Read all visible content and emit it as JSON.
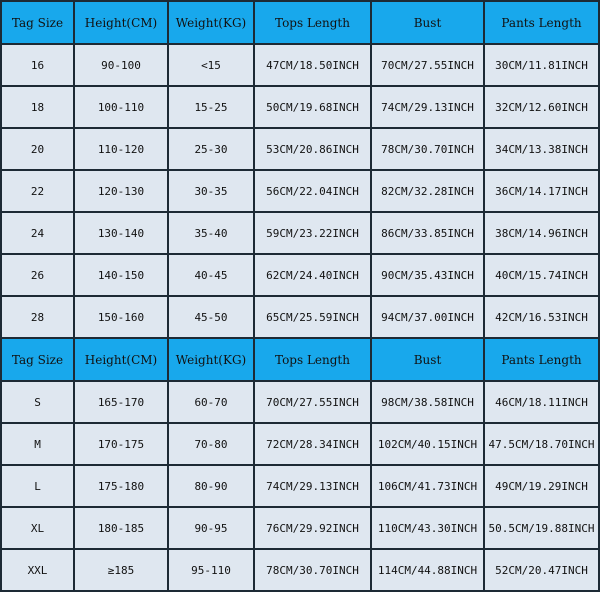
{
  "colors": {
    "header_bg": "#18a8ec",
    "cell_bg": "#dfe7f0",
    "border": "#1d2a35"
  },
  "headers": [
    "Tag Size",
    "Height(CM)",
    "Weight(KG)",
    "Tops Length",
    "Bust",
    "Pants Length"
  ],
  "kids_rows": [
    [
      "16",
      "90-100",
      "<15",
      "47CM/18.50INCH",
      "70CM/27.55INCH",
      "30CM/11.81INCH"
    ],
    [
      "18",
      "100-110",
      "15-25",
      "50CM/19.68INCH",
      "74CM/29.13INCH",
      "32CM/12.60INCH"
    ],
    [
      "20",
      "110-120",
      "25-30",
      "53CM/20.86INCH",
      "78CM/30.70INCH",
      "34CM/13.38INCH"
    ],
    [
      "22",
      "120-130",
      "30-35",
      "56CM/22.04INCH",
      "82CM/32.28INCH",
      "36CM/14.17INCH"
    ],
    [
      "24",
      "130-140",
      "35-40",
      "59CM/23.22INCH",
      "86CM/33.85INCH",
      "38CM/14.96INCH"
    ],
    [
      "26",
      "140-150",
      "40-45",
      "62CM/24.40INCH",
      "90CM/35.43INCH",
      "40CM/15.74INCH"
    ],
    [
      "28",
      "150-160",
      "45-50",
      "65CM/25.59INCH",
      "94CM/37.00INCH",
      "42CM/16.53INCH"
    ]
  ],
  "adult_rows": [
    [
      "S",
      "165-170",
      "60-70",
      "70CM/27.55INCH",
      "98CM/38.58INCH",
      "46CM/18.11INCH"
    ],
    [
      "M",
      "170-175",
      "70-80",
      "72CM/28.34INCH",
      "102CM/40.15INCH",
      "47.5CM/18.70INCH"
    ],
    [
      "L",
      "175-180",
      "80-90",
      "74CM/29.13INCH",
      "106CM/41.73INCH",
      "49CM/19.29INCH"
    ],
    [
      "XL",
      "180-185",
      "90-95",
      "76CM/29.92INCH",
      "110CM/43.30INCH",
      "50.5CM/19.88INCH"
    ],
    [
      "XXL",
      "≥185",
      "95-110",
      "78CM/30.70INCH",
      "114CM/44.88INCH",
      "52CM/20.47INCH"
    ]
  ]
}
